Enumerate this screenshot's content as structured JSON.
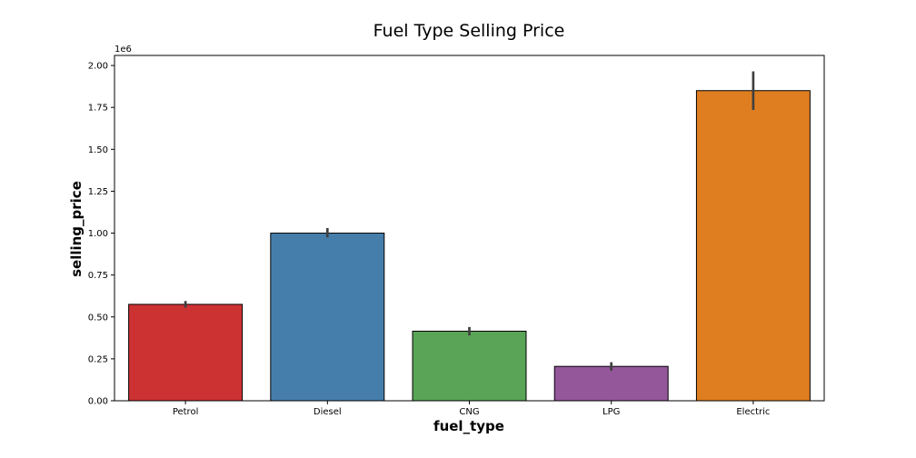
{
  "chart_data": {
    "type": "bar",
    "title": "Fuel Type Selling Price",
    "xlabel": "fuel_type",
    "ylabel": "selling_price",
    "y_offset_label": "1e6",
    "categories": [
      "Petrol",
      "Diesel",
      "CNG",
      "LPG",
      "Electric"
    ],
    "values": [
      0.575,
      1.0,
      0.415,
      0.205,
      1.85
    ],
    "error_low": [
      0.555,
      0.975,
      0.39,
      0.18,
      1.735
    ],
    "error_high": [
      0.595,
      1.03,
      0.44,
      0.23,
      1.965
    ],
    "colors": [
      "#cd3233",
      "#467eab",
      "#5aa457",
      "#93579a",
      "#df7e20"
    ],
    "ylim": [
      0,
      2.06
    ],
    "yticks": [
      0.0,
      0.25,
      0.5,
      0.75,
      1.0,
      1.25,
      1.5,
      1.75,
      2.0
    ],
    "ytick_labels": [
      "0.00",
      "0.25",
      "0.50",
      "0.75",
      "1.00",
      "1.25",
      "1.50",
      "1.75",
      "2.00"
    ],
    "grid": false,
    "legend": "none"
  }
}
